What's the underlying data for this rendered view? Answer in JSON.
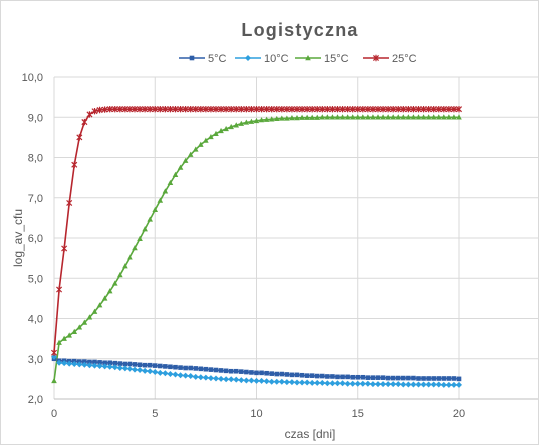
{
  "chart_data": {
    "type": "line",
    "title": "Logistyczna",
    "xlabel": "czas [dni]",
    "ylabel": "log_av_cfu",
    "xlim": [
      0,
      24
    ],
    "ylim": [
      2.0,
      10.0
    ],
    "x_ticks": [
      0,
      5,
      10,
      15,
      20
    ],
    "y_ticks": [
      2.0,
      3.0,
      4.0,
      5.0,
      6.0,
      7.0,
      8.0,
      9.0,
      10.0
    ],
    "y_tick_labels": [
      "2,0",
      "3,0",
      "4,0",
      "5,0",
      "6,0",
      "7,0",
      "8,0",
      "9,0",
      "10,0"
    ],
    "x_tick_labels": [
      "0",
      "5",
      "10",
      "15",
      "20"
    ],
    "grid": true,
    "legend_position": "top",
    "x": [
      0,
      0.25,
      0.5,
      0.75,
      1,
      1.25,
      1.5,
      1.75,
      2,
      2.25,
      2.5,
      2.75,
      3,
      3.25,
      3.5,
      3.75,
      4,
      4.25,
      4.5,
      4.75,
      5,
      5.25,
      5.5,
      5.75,
      6,
      6.25,
      6.5,
      6.75,
      7,
      7.25,
      7.5,
      7.75,
      8,
      8.25,
      8.5,
      8.75,
      9,
      9.25,
      9.5,
      9.75,
      10,
      10.25,
      10.5,
      10.75,
      11,
      11.25,
      11.5,
      11.75,
      12,
      12.25,
      12.5,
      12.75,
      13,
      13.25,
      13.5,
      13.75,
      14,
      14.25,
      14.5,
      14.75,
      15,
      15.25,
      15.5,
      15.75,
      16,
      16.25,
      16.5,
      16.75,
      17,
      17.25,
      17.5,
      17.75,
      18,
      18.25,
      18.5,
      18.75,
      19,
      19.25,
      19.5,
      19.75,
      20
    ],
    "series": [
      {
        "name": "5°C",
        "color": "#2e5ea8",
        "marker": "square",
        "values": [
          3.0,
          2.95,
          2.95,
          2.94,
          2.94,
          2.93,
          2.93,
          2.92,
          2.92,
          2.91,
          2.9,
          2.9,
          2.89,
          2.88,
          2.87,
          2.87,
          2.86,
          2.85,
          2.84,
          2.84,
          2.83,
          2.82,
          2.81,
          2.8,
          2.79,
          2.78,
          2.77,
          2.77,
          2.76,
          2.75,
          2.74,
          2.73,
          2.72,
          2.71,
          2.7,
          2.69,
          2.69,
          2.68,
          2.67,
          2.66,
          2.65,
          2.65,
          2.64,
          2.63,
          2.62,
          2.62,
          2.61,
          2.6,
          2.6,
          2.59,
          2.58,
          2.58,
          2.57,
          2.57,
          2.56,
          2.56,
          2.55,
          2.55,
          2.55,
          2.54,
          2.54,
          2.54,
          2.53,
          2.53,
          2.53,
          2.53,
          2.52,
          2.52,
          2.52,
          2.52,
          2.52,
          2.52,
          2.51,
          2.51,
          2.51,
          2.51,
          2.51,
          2.51,
          2.51,
          2.51,
          2.5
        ]
      },
      {
        "name": "10°C",
        "color": "#2e9fde",
        "marker": "diamond",
        "values": [
          3.05,
          2.9,
          2.89,
          2.88,
          2.87,
          2.86,
          2.85,
          2.84,
          2.83,
          2.82,
          2.81,
          2.8,
          2.79,
          2.77,
          2.76,
          2.75,
          2.73,
          2.72,
          2.7,
          2.69,
          2.67,
          2.65,
          2.64,
          2.62,
          2.61,
          2.59,
          2.58,
          2.57,
          2.55,
          2.54,
          2.53,
          2.52,
          2.51,
          2.5,
          2.49,
          2.49,
          2.48,
          2.47,
          2.46,
          2.46,
          2.45,
          2.45,
          2.44,
          2.43,
          2.43,
          2.43,
          2.42,
          2.42,
          2.41,
          2.41,
          2.41,
          2.4,
          2.4,
          2.4,
          2.39,
          2.39,
          2.39,
          2.39,
          2.38,
          2.38,
          2.38,
          2.38,
          2.38,
          2.37,
          2.37,
          2.37,
          2.37,
          2.37,
          2.37,
          2.36,
          2.36,
          2.36,
          2.36,
          2.36,
          2.36,
          2.36,
          2.36,
          2.35,
          2.35,
          2.35,
          2.35
        ]
      },
      {
        "name": "15°C",
        "color": "#5aa83c",
        "marker": "triangle",
        "values": [
          2.45,
          3.4,
          3.5,
          3.58,
          3.67,
          3.78,
          3.9,
          4.03,
          4.17,
          4.33,
          4.5,
          4.68,
          4.87,
          5.08,
          5.3,
          5.52,
          5.75,
          5.98,
          6.22,
          6.46,
          6.7,
          6.93,
          7.16,
          7.37,
          7.57,
          7.75,
          7.92,
          8.07,
          8.2,
          8.32,
          8.42,
          8.51,
          8.59,
          8.66,
          8.71,
          8.76,
          8.8,
          8.84,
          8.87,
          8.89,
          8.91,
          8.93,
          8.94,
          8.95,
          8.96,
          8.97,
          8.97,
          8.98,
          8.98,
          8.99,
          8.99,
          8.99,
          8.99,
          9.0,
          9.0,
          9.0,
          9.0,
          9.0,
          9.0,
          9.0,
          9.0,
          9.0,
          9.0,
          9.0,
          9.0,
          9.0,
          9.0,
          9.0,
          9.0,
          9.0,
          9.0,
          9.0,
          9.0,
          9.0,
          9.0,
          9.0,
          9.0,
          9.0,
          9.0,
          9.0,
          9.0
        ]
      },
      {
        "name": "25°C",
        "color": "#b7262e",
        "marker": "star",
        "values": [
          3.15,
          4.72,
          5.74,
          6.87,
          7.82,
          8.5,
          8.88,
          9.07,
          9.15,
          9.18,
          9.19,
          9.2,
          9.2,
          9.2,
          9.2,
          9.2,
          9.2,
          9.2,
          9.2,
          9.2,
          9.2,
          9.2,
          9.2,
          9.2,
          9.2,
          9.2,
          9.2,
          9.2,
          9.2,
          9.2,
          9.2,
          9.2,
          9.2,
          9.2,
          9.2,
          9.2,
          9.2,
          9.2,
          9.2,
          9.2,
          9.2,
          9.2,
          9.2,
          9.2,
          9.2,
          9.2,
          9.2,
          9.2,
          9.2,
          9.2,
          9.2,
          9.2,
          9.2,
          9.2,
          9.2,
          9.2,
          9.2,
          9.2,
          9.2,
          9.2,
          9.2,
          9.2,
          9.2,
          9.2,
          9.2,
          9.2,
          9.2,
          9.2,
          9.2,
          9.2,
          9.2,
          9.2,
          9.2,
          9.2,
          9.2,
          9.2,
          9.2,
          9.2,
          9.2,
          9.2,
          9.2
        ]
      }
    ]
  }
}
